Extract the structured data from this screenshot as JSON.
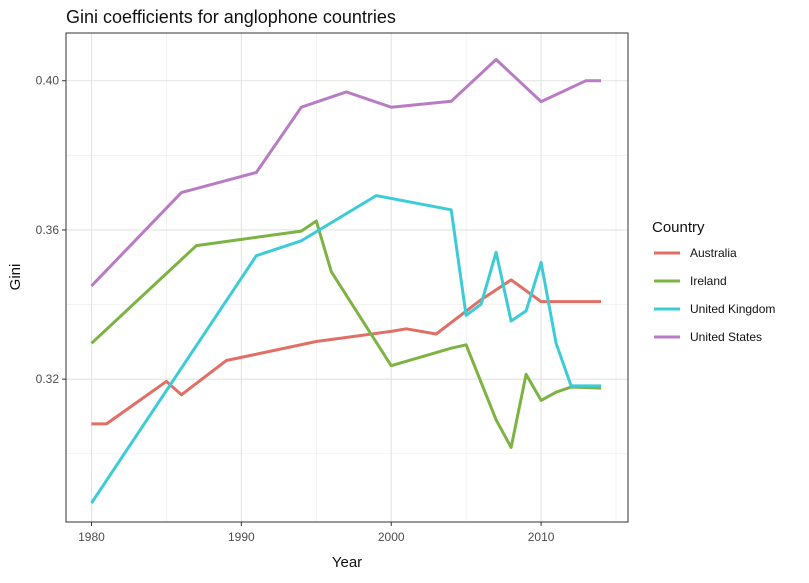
{
  "chart_data": {
    "type": "line",
    "title": "Gini coefficients for anglophone countries",
    "xlabel": "Year",
    "ylabel": "Gini",
    "xlim": [
      1978.3,
      2015.8
    ],
    "ylim": [
      0.2817,
      0.4128
    ],
    "xticks": [
      1980,
      1990,
      2000,
      2010
    ],
    "yticks": [
      0.32,
      0.36,
      0.4
    ],
    "ytick_labels": [
      "0.32",
      "0.36",
      "0.40"
    ],
    "grid": true,
    "legend": {
      "title": "Country",
      "position": "right"
    },
    "series": [
      {
        "name": "Australia",
        "color": "#E06F66",
        "x": [
          1980,
          1981,
          1985,
          1986,
          1989,
          1995,
          2000,
          2001,
          2003,
          2006,
          2008,
          2010,
          2014
        ],
        "y": [
          0.308,
          0.308,
          0.3194,
          0.3158,
          0.325,
          0.3301,
          0.3328,
          0.3335,
          0.3321,
          0.3413,
          0.3466,
          0.3408,
          0.3408
        ]
      },
      {
        "name": "Ireland",
        "color": "#7CB342",
        "x": [
          1980,
          1987,
          1994,
          1995,
          1996,
          2000,
          2004,
          2005,
          2007,
          2008,
          2009,
          2010,
          2011,
          2012,
          2014
        ],
        "y": [
          0.3296,
          0.3558,
          0.3597,
          0.3624,
          0.3488,
          0.3236,
          0.3283,
          0.3292,
          0.3091,
          0.3017,
          0.3213,
          0.3143,
          0.3165,
          0.3179,
          0.3176
        ]
      },
      {
        "name": "United Kingdom",
        "color": "#3DCCD5",
        "x": [
          1980,
          1991,
          1994,
          1999,
          2004,
          2005,
          2006,
          2007,
          2008,
          2009,
          2010,
          2011,
          2012,
          2014
        ],
        "y": [
          0.2868,
          0.3531,
          0.3571,
          0.3692,
          0.3654,
          0.3371,
          0.3401,
          0.354,
          0.3356,
          0.3383,
          0.3513,
          0.3296,
          0.3182,
          0.3182
        ]
      },
      {
        "name": "United States",
        "color": "#B97CC4",
        "x": [
          1980,
          1986,
          1991,
          1994,
          1997,
          2000,
          2004,
          2007,
          2010,
          2013,
          2014
        ],
        "y": [
          0.345,
          0.37,
          0.3754,
          0.3929,
          0.397,
          0.3929,
          0.3945,
          0.4057,
          0.3944,
          0.4,
          0.4
        ]
      }
    ]
  }
}
